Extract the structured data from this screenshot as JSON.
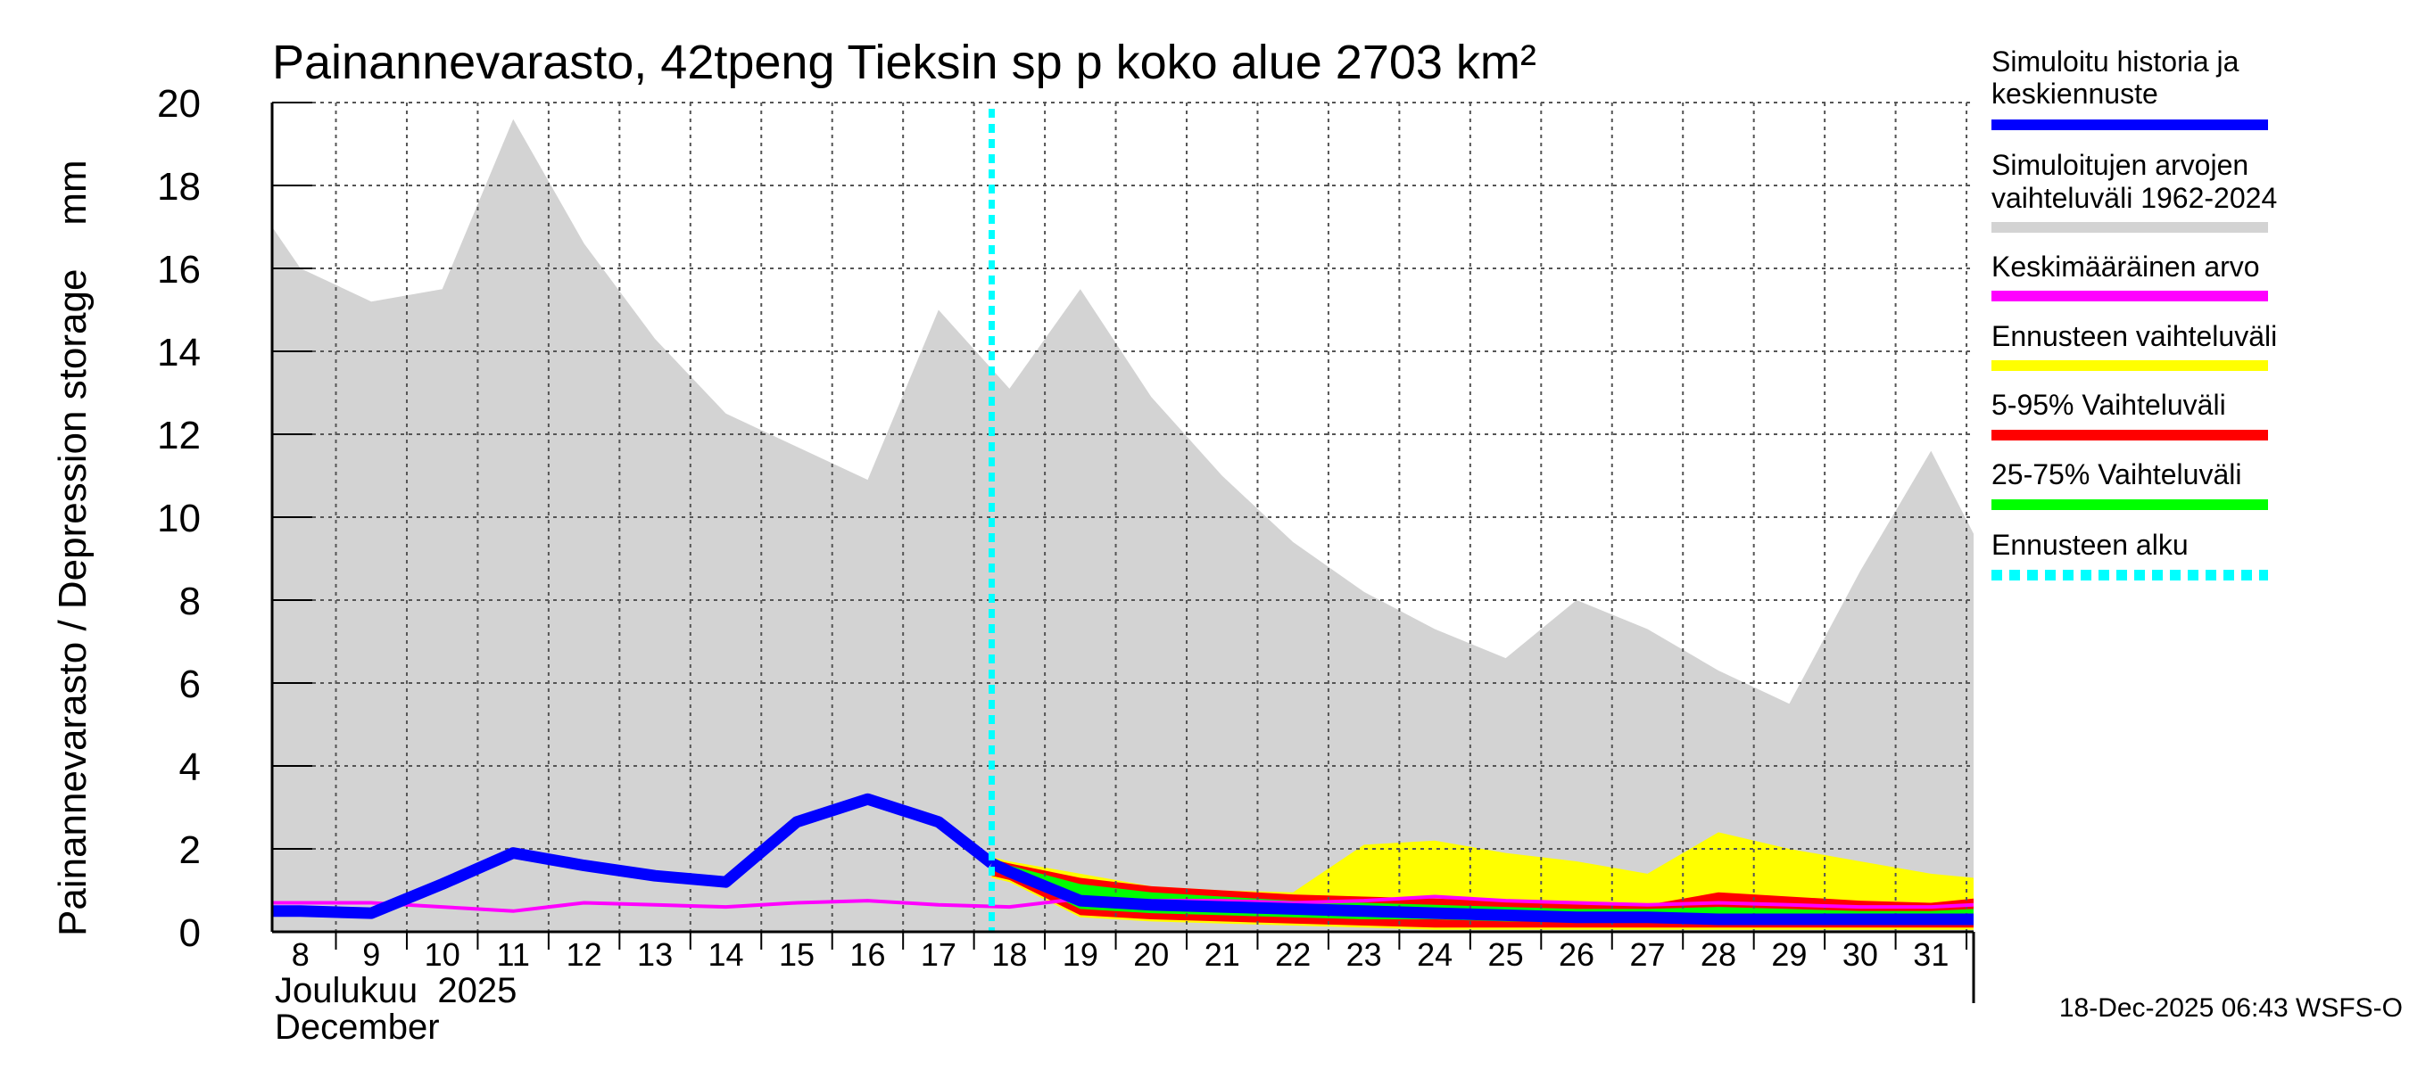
{
  "chart_data": {
    "type": "area",
    "title": "Painannevarasto, 42tpeng Tieksin sp p koko alue 2703 km²",
    "ylabel": "Painannevarasto / Depression storage    mm",
    "month_label_fi": "Joulukuu  2025",
    "month_label_en": "December",
    "footer": "18-Dec-2025 06:43 WSFS-O",
    "ylim": [
      0,
      20
    ],
    "yticks": [
      0,
      2,
      4,
      6,
      8,
      10,
      12,
      14,
      16,
      18,
      20
    ],
    "xlim": [
      7.6,
      31.6
    ],
    "xticks": [
      8,
      9,
      10,
      11,
      12,
      13,
      14,
      15,
      16,
      17,
      18,
      19,
      20,
      21,
      22,
      23,
      24,
      25,
      26,
      27,
      28,
      29,
      30,
      31
    ],
    "forecast_start": 17.75,
    "series": [
      {
        "name": "range_1962_2024",
        "x": [
          7.6,
          8,
          9,
          10,
          11,
          12,
          13,
          14,
          15,
          16,
          17,
          18,
          19,
          20,
          21,
          22,
          23,
          24,
          25,
          26,
          27,
          28,
          29,
          30,
          31,
          31.6
        ],
        "upper": [
          17.0,
          16.0,
          15.2,
          15.5,
          19.6,
          16.6,
          14.3,
          12.5,
          11.7,
          10.9,
          15.0,
          13.1,
          15.5,
          12.9,
          11.0,
          9.4,
          8.2,
          7.3,
          6.6,
          8.0,
          7.3,
          6.3,
          5.5,
          8.7,
          11.6,
          9.6
        ],
        "lower": [
          0,
          0,
          0,
          0,
          0,
          0,
          0,
          0,
          0,
          0,
          0,
          0,
          0,
          0,
          0,
          0,
          0,
          0,
          0,
          0,
          0,
          0,
          0,
          0,
          0,
          0
        ]
      },
      {
        "name": "forecast_range",
        "x": [
          17.75,
          18,
          19,
          20,
          21,
          22,
          23,
          24,
          25,
          26,
          27,
          28,
          29,
          30,
          31,
          31.6
        ],
        "upper": [
          1.8,
          1.7,
          1.4,
          1.1,
          1.0,
          0.95,
          2.1,
          2.2,
          1.9,
          1.7,
          1.4,
          2.4,
          2.0,
          1.7,
          1.4,
          1.3
        ],
        "lower": [
          1.3,
          1.2,
          0.35,
          0.25,
          0.2,
          0.15,
          0.1,
          0.05,
          0.05,
          0.05,
          0.05,
          0.05,
          0.05,
          0.05,
          0.05,
          0.05
        ]
      },
      {
        "name": "p5_95",
        "x": [
          17.75,
          18,
          19,
          20,
          21,
          22,
          23,
          24,
          25,
          26,
          27,
          28,
          29,
          30,
          31,
          31.6
        ],
        "upper": [
          1.75,
          1.65,
          1.3,
          1.1,
          1.0,
          0.9,
          0.85,
          0.8,
          0.75,
          0.7,
          0.65,
          0.95,
          0.85,
          0.75,
          0.7,
          0.8
        ],
        "lower": [
          1.35,
          1.25,
          0.4,
          0.3,
          0.25,
          0.2,
          0.15,
          0.1,
          0.1,
          0.1,
          0.1,
          0.1,
          0.1,
          0.1,
          0.1,
          0.1
        ]
      },
      {
        "name": "p25_75",
        "x": [
          17.75,
          18,
          19,
          20,
          21,
          22,
          23,
          24,
          25,
          26,
          27,
          28,
          29,
          30,
          31,
          31.6
        ],
        "upper": [
          1.7,
          1.6,
          1.15,
          0.95,
          0.85,
          0.75,
          0.7,
          0.65,
          0.6,
          0.55,
          0.55,
          0.6,
          0.55,
          0.5,
          0.5,
          0.55
        ],
        "lower": [
          1.5,
          1.4,
          0.55,
          0.45,
          0.4,
          0.35,
          0.3,
          0.3,
          0.25,
          0.25,
          0.25,
          0.25,
          0.25,
          0.25,
          0.25,
          0.25
        ]
      },
      {
        "name": "mean_value",
        "x": [
          7.6,
          8,
          9,
          10,
          11,
          12,
          13,
          14,
          15,
          16,
          17,
          18,
          19,
          20,
          21,
          22,
          23,
          24,
          25,
          26,
          27,
          28,
          29,
          30,
          31,
          31.6
        ],
        "y": [
          0.7,
          0.7,
          0.7,
          0.6,
          0.5,
          0.7,
          0.65,
          0.6,
          0.7,
          0.75,
          0.65,
          0.6,
          0.8,
          0.75,
          0.75,
          0.7,
          0.75,
          0.85,
          0.75,
          0.7,
          0.65,
          0.7,
          0.65,
          0.6,
          0.6,
          0.65
        ]
      },
      {
        "name": "simulated_history",
        "x": [
          7.6,
          8,
          9,
          10,
          11,
          12,
          13,
          14,
          15,
          16,
          17,
          17.75
        ],
        "y": [
          0.5,
          0.5,
          0.45,
          1.15,
          1.9,
          1.6,
          1.35,
          1.2,
          2.65,
          3.2,
          2.65,
          1.65
        ]
      },
      {
        "name": "median_forecast",
        "x": [
          17.75,
          18,
          19,
          20,
          21,
          22,
          23,
          24,
          25,
          26,
          27,
          28,
          29,
          30,
          31,
          31.6
        ],
        "y": [
          1.65,
          1.45,
          0.75,
          0.65,
          0.6,
          0.55,
          0.5,
          0.45,
          0.4,
          0.35,
          0.35,
          0.3,
          0.3,
          0.3,
          0.3,
          0.3
        ]
      }
    ]
  },
  "legend": [
    {
      "label": "Simuloitu historia ja\nkeskiennuste",
      "color": "#0000ff",
      "style": "solid"
    },
    {
      "label": "Simuloitujen arvojen\nvaihteluväli 1962-2024",
      "color": "#d3d3d3",
      "style": "solid"
    },
    {
      "label": "Keskimääräinen arvo",
      "color": "#ff00ff",
      "style": "solid"
    },
    {
      "label": "Ennusteen vaihteluväli",
      "color": "#ffff00",
      "style": "solid"
    },
    {
      "label": "5-95% Vaihteluväli",
      "color": "#ff0000",
      "style": "solid"
    },
    {
      "label": "25-75% Vaihteluväli",
      "color": "#00ff00",
      "style": "solid"
    },
    {
      "label": "Ennusteen alku",
      "color": "#00ffff",
      "style": "dotted"
    }
  ],
  "colors": {
    "range": "#d3d3d3",
    "forecast_range": "#ffff00",
    "p5_95": "#ff0000",
    "p25_75": "#00ff00",
    "mean": "#ff00ff",
    "history": "#0000ff",
    "forecast_start": "#00ffff",
    "grid": "#555555"
  }
}
